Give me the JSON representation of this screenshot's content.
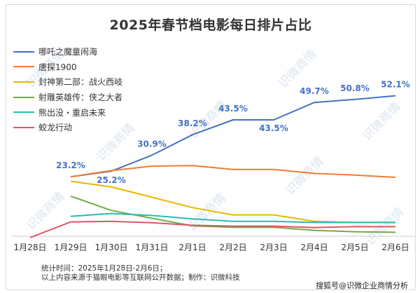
{
  "watermark": "识微商情",
  "footnotes": [
    "统计时间：2025年1月28日-2月6日；",
    "以上内容来源于猫眼电影等互联网公开数据；制作：识微科技"
  ],
  "credit": "搜狐号@识微企业商情分析",
  "chart_data": {
    "type": "line",
    "title": "2025年春节档电影每日排片占比",
    "categories": [
      "1月28日",
      "1月29日",
      "1月30日",
      "1月31日",
      "2月1日",
      "2月2日",
      "2月3日",
      "2月4日",
      "2月5日",
      "2月6日"
    ],
    "ylim": [
      0,
      60
    ],
    "grid": false,
    "legend_position": "top-left",
    "series": [
      {
        "name": "哪吒之魔童闹海",
        "color": "#4472c4",
        "values": [
          null,
          23.2,
          25.2,
          30.9,
          38.2,
          43.5,
          43.5,
          49.7,
          50.8,
          52.1
        ],
        "labels": [
          "",
          "23.2%",
          "25.2%",
          "30.9%",
          "38.2%",
          "43.5%",
          "43.5%",
          "49.7%",
          "50.8%",
          "52.1%"
        ]
      },
      {
        "name": "唐探1900",
        "color": "#ed7d31",
        "values": [
          null,
          23.2,
          25.4,
          27.0,
          27.2,
          25.8,
          25.8,
          24.4,
          23.8,
          23.0
        ]
      },
      {
        "name": "封神第二部：战火西岐",
        "color": "#e6b800",
        "values": [
          null,
          21.6,
          19.6,
          15.9,
          12.2,
          9.6,
          9.6,
          7.3,
          6.9,
          6.9
        ]
      },
      {
        "name": "射雕英雄传：侠之大者",
        "color": "#70ad47",
        "values": [
          null,
          16.3,
          11.2,
          8.4,
          5.7,
          5.2,
          5.2,
          4.1,
          3.6,
          3.4
        ]
      },
      {
        "name": "熊出没・重启未来",
        "color": "#2fb8b0",
        "values": [
          null,
          9.1,
          10.1,
          9.4,
          8.2,
          7.3,
          7.3,
          6.9,
          6.9,
          6.9
        ]
      },
      {
        "name": "蛟龙行动",
        "color": "#e05566",
        "values": [
          1.5,
          7.1,
          7.3,
          6.8,
          5.9,
          5.6,
          5.6,
          5.1,
          5.4,
          5.4
        ]
      }
    ]
  }
}
